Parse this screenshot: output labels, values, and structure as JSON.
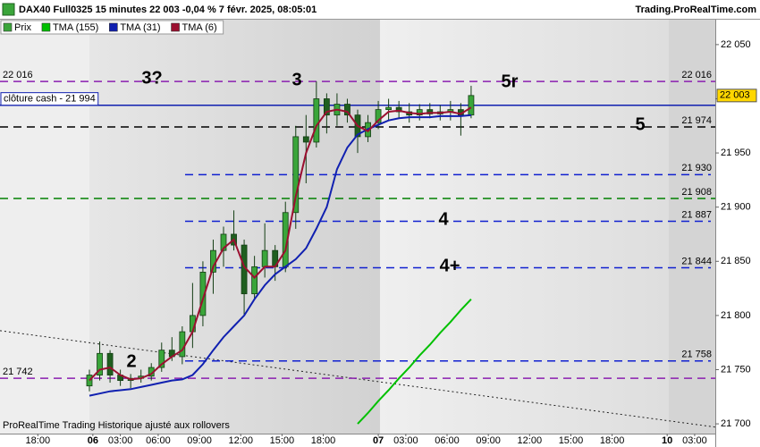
{
  "chart_data": {
    "type": "candlestick",
    "title": "DAX40 Full0325 15 minutes 22 003 -0,04 % 7 févr. 2025, 08:05:01",
    "source": "Trading.ProRealTime.com",
    "footer": "ProRealTime Trading  Historique ajusté aux rollovers",
    "price_name": "Prix",
    "up_color": "#3aa53a",
    "down_color": "#1f5f1f",
    "x": [
      26,
      29,
      32,
      35,
      38,
      41,
      44,
      47,
      50,
      53,
      56,
      59,
      62,
      65,
      68,
      71,
      74,
      77,
      80,
      83,
      86,
      89,
      92,
      95,
      98,
      101,
      104,
      107,
      110,
      113,
      116,
      119,
      122,
      125,
      128,
      131,
      134,
      137
    ],
    "open": [
      21735,
      21745,
      21765,
      21745,
      21740,
      21742,
      21744,
      21752,
      21768,
      21762,
      21785,
      21800,
      21840,
      21860,
      21875,
      21865,
      21820,
      21845,
      21860,
      21845,
      21895,
      21965,
      21960,
      22000,
      21985,
      21995,
      21985,
      21965,
      21978,
      21990,
      21992,
      21988,
      21985,
      21990,
      21986,
      21988,
      21990,
      21985
    ],
    "high": [
      21750,
      21776,
      21768,
      21750,
      21746,
      21750,
      21756,
      21775,
      21780,
      21790,
      21830,
      21850,
      21870,
      21882,
      21897,
      21870,
      21855,
      21885,
      21865,
      21905,
      21975,
      21985,
      22016,
      22005,
      22005,
      22000,
      21990,
      21985,
      21998,
      22000,
      21998,
      21996,
      21995,
      21996,
      21994,
      21998,
      21996,
      22012
    ],
    "low": [
      21730,
      21740,
      21738,
      21735,
      21733,
      21738,
      21740,
      21748,
      21758,
      21755,
      21770,
      21790,
      21820,
      21845,
      21860,
      21800,
      21815,
      21835,
      21832,
      21840,
      21880,
      21922,
      21955,
      21968,
      21975,
      21978,
      21950,
      21960,
      21972,
      21980,
      21982,
      21978,
      21980,
      21982,
      21980,
      21980,
      21966,
      21982
    ],
    "close": [
      21745,
      21765,
      21745,
      21740,
      21742,
      21744,
      21752,
      21768,
      21762,
      21785,
      21800,
      21840,
      21860,
      21875,
      21865,
      21820,
      21845,
      21860,
      21845,
      21895,
      21965,
      21960,
      22000,
      21985,
      21995,
      21985,
      21965,
      21978,
      21990,
      21992,
      21988,
      21985,
      21990,
      21986,
      21988,
      21990,
      21985,
      22003
    ],
    "series": [
      {
        "name": "TMA (155)",
        "color": "#00c000",
        "values": [
          null,
          null,
          null,
          null,
          null,
          null,
          null,
          null,
          null,
          null,
          null,
          null,
          null,
          null,
          null,
          null,
          null,
          null,
          null,
          null,
          null,
          null,
          null,
          null,
          null,
          null,
          21700,
          21710,
          21721,
          21731,
          21742,
          21752,
          21763,
          21773,
          21784,
          21794,
          21805,
          21815
        ]
      },
      {
        "name": "TMA (31)",
        "color": "#1020b0",
        "values": [
          21726,
          21728,
          21730,
          21731,
          21732,
          21734,
          21736,
          21738,
          21740,
          21741,
          21745,
          21755,
          21768,
          21780,
          21790,
          21800,
          21815,
          21828,
          21838,
          21845,
          21852,
          21862,
          21880,
          21900,
          21935,
          21955,
          21967,
          21972,
          21976,
          21980,
          21982,
          21983,
          21983,
          21983,
          21984,
          21984,
          21984,
          21985
        ]
      },
      {
        "name": "TMA (6)",
        "color": "#9b1030",
        "values": [
          21740,
          21750,
          21752,
          21745,
          21741,
          21742,
          21746,
          21755,
          21762,
          21768,
          21785,
          21815,
          21845,
          21862,
          21870,
          21845,
          21835,
          21845,
          21845,
          21860,
          21910,
          21950,
          21975,
          21988,
          21990,
          21988,
          21975,
          21970,
          21980,
          21988,
          21989,
          21987,
          21986,
          21987,
          21987,
          21988,
          21986,
          21992
        ]
      }
    ],
    "ylim": [
      21691,
      22073
    ],
    "yticks": [
      {
        "value": 21700,
        "label": "21 700"
      },
      {
        "value": 21750,
        "label": "21 750"
      },
      {
        "value": 21800,
        "label": "21 800"
      },
      {
        "value": 21850,
        "label": "21 850"
      },
      {
        "value": 21900,
        "label": "21 900"
      },
      {
        "value": 21950,
        "label": "21 950"
      },
      {
        "value": 22000,
        "label": "22 000"
      },
      {
        "value": 22050,
        "label": "22 050"
      }
    ],
    "xlim": [
      0,
      208
    ],
    "xticks": [
      {
        "value": 11,
        "label": "18:00"
      },
      {
        "value": 27,
        "label": "06"
      },
      {
        "value": 35,
        "label": "03:00"
      },
      {
        "value": 46,
        "label": "06:00"
      },
      {
        "value": 58,
        "label": "09:00"
      },
      {
        "value": 70,
        "label": "12:00"
      },
      {
        "value": 82,
        "label": "15:00"
      },
      {
        "value": 94,
        "label": "18:00"
      },
      {
        "value": 110,
        "label": "07"
      },
      {
        "value": 118,
        "label": "03:00"
      },
      {
        "value": 130,
        "label": "06:00"
      },
      {
        "value": 142,
        "label": "09:00"
      },
      {
        "value": 154,
        "label": "12:00"
      },
      {
        "value": 166,
        "label": "15:00"
      },
      {
        "value": 178,
        "label": "18:00"
      },
      {
        "value": 194,
        "label": "10"
      },
      {
        "value": 202,
        "label": "03:00"
      }
    ],
    "levels": [
      {
        "value": 22016,
        "label": "22 016",
        "color": "#8a1fb0",
        "style": "dashed",
        "full": true,
        "label_sides": [
          "left",
          "right"
        ]
      },
      {
        "value": 21994,
        "label": "clôture cash -  21 994",
        "color": "#1020b0",
        "style": "solid",
        "full": true,
        "label_sides": [
          "box"
        ]
      },
      {
        "value": 21974,
        "label": "21 974",
        "color": "#000000",
        "style": "dashed",
        "full": true,
        "label_sides": [
          "right"
        ]
      },
      {
        "value": 21930,
        "label": "21 930",
        "color": "#1020d0",
        "style": "dashed",
        "full": false,
        "label_sides": [
          "right"
        ]
      },
      {
        "value": 21908,
        "label": "21 908",
        "color": "#008000",
        "style": "dashed",
        "full": true,
        "label_sides": [
          "right"
        ]
      },
      {
        "value": 21887,
        "label": "21 887",
        "color": "#1020d0",
        "style": "dashed",
        "full": false,
        "label_sides": [
          "right"
        ]
      },
      {
        "value": 21844,
        "label": "21 844",
        "color": "#1020d0",
        "style": "dashed",
        "full": false,
        "label_sides": [
          "right"
        ]
      },
      {
        "value": 21758,
        "label": "21 758",
        "color": "#1020d0",
        "style": "dashed",
        "full": false,
        "label_sides": [
          "right"
        ]
      },
      {
        "value": 21742,
        "label": "21 742",
        "color": "#8a1fb0",
        "style": "dashed",
        "full": true,
        "label_sides": [
          "left"
        ]
      }
    ],
    "wave_labels": [
      {
        "text": "3?",
        "color": "#8a1fb0"
      },
      {
        "text": "3",
        "color": "#1020d0"
      },
      {
        "text": "5r",
        "color": "#1020d0"
      },
      {
        "text": "5",
        "color": "#000000"
      },
      {
        "text": "4",
        "color": "#1020d0"
      },
      {
        "text": "4+",
        "color": "#1020d0"
      },
      {
        "text": "2",
        "color": "#1020d0"
      }
    ],
    "trendline": {
      "start": 21786,
      "end": 21697
    },
    "last_price": {
      "value": 22003,
      "label": "22 003",
      "color": "#ffd700"
    }
  }
}
